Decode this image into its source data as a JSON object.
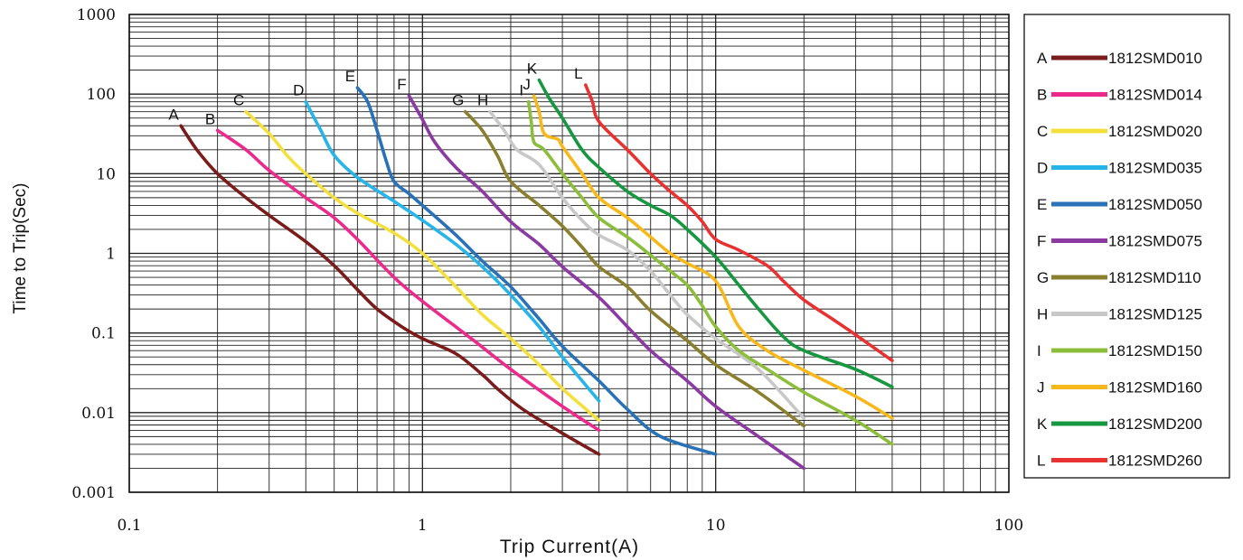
{
  "chart_data": {
    "type": "line",
    "title": "",
    "xlabel": "Trip Current(A)",
    "ylabel": "Time to Trip(Sec)",
    "xscale": "log",
    "yscale": "log",
    "xlim": [
      0.1,
      100
    ],
    "ylim": [
      0.001,
      1000
    ],
    "grid": true,
    "legend_position": "right",
    "x_ticks": [
      {
        "value": 0.1,
        "label": "0.1"
      },
      {
        "value": 1,
        "label": "1"
      },
      {
        "value": 10,
        "label": "10"
      },
      {
        "value": 100,
        "label": "100"
      }
    ],
    "y_ticks": [
      {
        "value": 1000,
        "label": "1000"
      },
      {
        "value": 100,
        "label": "100"
      },
      {
        "value": 10,
        "label": "10"
      },
      {
        "value": 1,
        "label": "1"
      },
      {
        "value": 0.1,
        "label": "0.1"
      },
      {
        "value": 0.01,
        "label": "0.01"
      },
      {
        "value": 0.001,
        "label": "0.001"
      }
    ],
    "series": [
      {
        "letter": "A",
        "name": "1812SMD010",
        "color": "#7b1c1c",
        "points": [
          [
            0.15,
            40
          ],
          [
            0.17,
            20
          ],
          [
            0.2,
            10
          ],
          [
            0.25,
            5
          ],
          [
            0.3,
            3
          ],
          [
            0.4,
            1.4
          ],
          [
            0.5,
            0.7
          ],
          [
            0.6,
            0.35
          ],
          [
            0.7,
            0.2
          ],
          [
            0.85,
            0.12
          ],
          [
            1.0,
            0.085
          ],
          [
            1.3,
            0.055
          ],
          [
            1.6,
            0.03
          ],
          [
            1.8,
            0.02
          ],
          [
            2.2,
            0.011
          ],
          [
            3.0,
            0.0055
          ],
          [
            4.0,
            0.003
          ]
        ]
      },
      {
        "letter": "B",
        "name": "1812SMD014",
        "color": "#ec2a8c",
        "points": [
          [
            0.2,
            35
          ],
          [
            0.25,
            20
          ],
          [
            0.3,
            11
          ],
          [
            0.4,
            5
          ],
          [
            0.5,
            2.8
          ],
          [
            0.6,
            1.5
          ],
          [
            0.8,
            0.5
          ],
          [
            1.0,
            0.25
          ],
          [
            1.5,
            0.08
          ],
          [
            2.0,
            0.035
          ],
          [
            3.0,
            0.012
          ],
          [
            4.0,
            0.006
          ]
        ]
      },
      {
        "letter": "C",
        "name": "1812SMD020",
        "color": "#f4e03c",
        "points": [
          [
            0.25,
            60
          ],
          [
            0.3,
            32
          ],
          [
            0.35,
            16
          ],
          [
            0.4,
            10
          ],
          [
            0.5,
            5
          ],
          [
            0.6,
            3.2
          ],
          [
            0.8,
            1.8
          ],
          [
            1.0,
            1.0
          ],
          [
            1.3,
            0.38
          ],
          [
            1.6,
            0.17
          ],
          [
            2.0,
            0.085
          ],
          [
            2.5,
            0.04
          ],
          [
            3.0,
            0.02
          ],
          [
            4.0,
            0.008
          ]
        ]
      },
      {
        "letter": "D",
        "name": "1812SMD035",
        "color": "#27b4e8",
        "points": [
          [
            0.4,
            80
          ],
          [
            0.45,
            35
          ],
          [
            0.5,
            17
          ],
          [
            0.6,
            9
          ],
          [
            0.8,
            4.5
          ],
          [
            1.0,
            2.6
          ],
          [
            1.3,
            1.3
          ],
          [
            1.6,
            0.68
          ],
          [
            2.0,
            0.3
          ],
          [
            2.5,
            0.12
          ],
          [
            3.0,
            0.05
          ],
          [
            4.0,
            0.014
          ]
        ]
      },
      {
        "letter": "E",
        "name": "1812SMD050",
        "color": "#2a72b8",
        "points": [
          [
            0.6,
            120
          ],
          [
            0.65,
            80
          ],
          [
            0.7,
            35
          ],
          [
            0.75,
            15
          ],
          [
            0.8,
            8
          ],
          [
            0.9,
            5.6
          ],
          [
            1.0,
            4
          ],
          [
            1.3,
            1.7
          ],
          [
            1.6,
            0.8
          ],
          [
            2.0,
            0.38
          ],
          [
            2.5,
            0.15
          ],
          [
            3.0,
            0.068
          ],
          [
            4.0,
            0.025
          ],
          [
            5.0,
            0.011
          ],
          [
            6.5,
            0.005
          ],
          [
            10,
            0.003
          ]
        ]
      },
      {
        "letter": "F",
        "name": "1812SMD075",
        "color": "#8a3aa0",
        "points": [
          [
            0.9,
            95
          ],
          [
            1.0,
            48
          ],
          [
            1.1,
            25
          ],
          [
            1.3,
            12
          ],
          [
            1.6,
            6
          ],
          [
            2.0,
            2.5
          ],
          [
            2.5,
            1.3
          ],
          [
            3.0,
            0.68
          ],
          [
            4.0,
            0.28
          ],
          [
            5.0,
            0.12
          ],
          [
            6.0,
            0.06
          ],
          [
            8.0,
            0.025
          ],
          [
            10,
            0.012
          ],
          [
            14,
            0.005
          ],
          [
            20,
            0.002
          ]
        ]
      },
      {
        "letter": "G",
        "name": "1812SMD110",
        "color": "#8a7f2e",
        "points": [
          [
            1.4,
            60
          ],
          [
            1.6,
            35
          ],
          [
            1.8,
            17
          ],
          [
            2.0,
            8
          ],
          [
            2.5,
            4
          ],
          [
            3.0,
            2.2
          ],
          [
            3.5,
            1.2
          ],
          [
            4.0,
            0.68
          ],
          [
            5.0,
            0.38
          ],
          [
            6.0,
            0.19
          ],
          [
            8.0,
            0.08
          ],
          [
            10,
            0.04
          ],
          [
            14,
            0.018
          ],
          [
            20,
            0.0068
          ]
        ]
      },
      {
        "letter": "H",
        "name": "1812SMD125",
        "color": "#c8c8c8",
        "points": [
          [
            1.7,
            60
          ],
          [
            1.9,
            35
          ],
          [
            2.1,
            20
          ],
          [
            2.5,
            13
          ],
          [
            3.0,
            5
          ],
          [
            3.5,
            2.6
          ],
          [
            4.0,
            1.7
          ],
          [
            5.0,
            1.1
          ],
          [
            6.0,
            0.6
          ],
          [
            7.0,
            0.3
          ],
          [
            8.0,
            0.17
          ],
          [
            10,
            0.085
          ],
          [
            14,
            0.035
          ],
          [
            20,
            0.0085
          ]
        ]
      },
      {
        "letter": "I",
        "name": "1812SMD150",
        "color": "#8cbe3c",
        "points": [
          [
            2.3,
            80
          ],
          [
            2.35,
            45
          ],
          [
            2.4,
            25
          ],
          [
            2.6,
            20
          ],
          [
            3.0,
            10
          ],
          [
            3.5,
            5
          ],
          [
            4.0,
            2.8
          ],
          [
            5.0,
            1.6
          ],
          [
            6.0,
            0.95
          ],
          [
            7.0,
            0.6
          ],
          [
            8.0,
            0.4
          ],
          [
            9.0,
            0.22
          ],
          [
            10,
            0.12
          ],
          [
            12,
            0.06
          ],
          [
            15,
            0.035
          ],
          [
            20,
            0.018
          ],
          [
            30,
            0.008
          ],
          [
            40,
            0.004
          ]
        ]
      },
      {
        "letter": "J",
        "name": "1812SMD160",
        "color": "#f7b81c",
        "points": [
          [
            2.4,
            95
          ],
          [
            2.5,
            60
          ],
          [
            2.6,
            32
          ],
          [
            2.9,
            27
          ],
          [
            3.0,
            22
          ],
          [
            3.5,
            10
          ],
          [
            4.0,
            5
          ],
          [
            5.0,
            2.8
          ],
          [
            6.0,
            1.6
          ],
          [
            7.0,
            1.0
          ],
          [
            8.0,
            0.75
          ],
          [
            10,
            0.45
          ],
          [
            12,
            0.12
          ],
          [
            15,
            0.06
          ],
          [
            20,
            0.034
          ],
          [
            30,
            0.016
          ],
          [
            40,
            0.0085
          ]
        ]
      },
      {
        "letter": "K",
        "name": "1812SMD200",
        "color": "#17973f",
        "points": [
          [
            2.5,
            150
          ],
          [
            2.7,
            90
          ],
          [
            3.0,
            50
          ],
          [
            3.5,
            20
          ],
          [
            4.0,
            12
          ],
          [
            5.0,
            6
          ],
          [
            6.0,
            4
          ],
          [
            7.0,
            3
          ],
          [
            8.0,
            2
          ],
          [
            10,
            0.9
          ],
          [
            12,
            0.4
          ],
          [
            14,
            0.2
          ],
          [
            17,
            0.09
          ],
          [
            20,
            0.06
          ],
          [
            30,
            0.035
          ],
          [
            40,
            0.021
          ]
        ]
      },
      {
        "letter": "L",
        "name": "1812SMD260",
        "color": "#e83232",
        "points": [
          [
            3.6,
            130
          ],
          [
            3.8,
            80
          ],
          [
            4.0,
            45
          ],
          [
            5.0,
            20
          ],
          [
            6.0,
            10
          ],
          [
            7.0,
            6
          ],
          [
            8.0,
            4
          ],
          [
            9.0,
            2.5
          ],
          [
            10,
            1.5
          ],
          [
            12,
            1.1
          ],
          [
            15,
            0.7
          ],
          [
            17,
            0.45
          ],
          [
            20,
            0.26
          ],
          [
            25,
            0.15
          ],
          [
            30,
            0.095
          ],
          [
            40,
            0.045
          ]
        ]
      }
    ]
  }
}
